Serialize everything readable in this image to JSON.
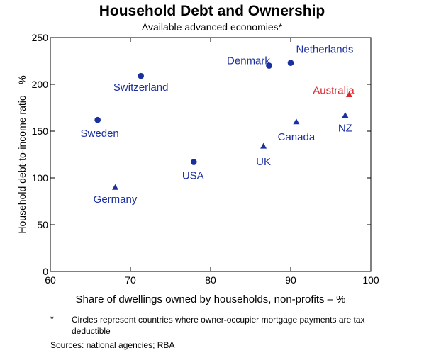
{
  "chart_data": {
    "type": "scatter",
    "title": "Household Debt and Ownership",
    "subtitle": "Available advanced economies*",
    "xlabel": "Share of dwellings owned by households, non-profits – %",
    "ylabel": "Household debt-to-income ratio – %",
    "xlim": [
      60,
      100
    ],
    "ylim": [
      0,
      250
    ],
    "x_ticks": [
      "60",
      "70",
      "80",
      "90",
      "100"
    ],
    "y_ticks": [
      "0",
      "50",
      "100",
      "150",
      "200",
      "250"
    ],
    "grid": false,
    "marker_legend": {
      "circle": "Circles represent countries where owner-occupier mortgage payments are tax deductible"
    },
    "colors": {
      "default": "#1a2fa0",
      "highlight": "#d8262b"
    },
    "points": [
      {
        "label": "Netherlands",
        "x": 90.0,
        "y": 223,
        "marker": "circle",
        "color": "#1a2fa0"
      },
      {
        "label": "Denmark",
        "x": 87.3,
        "y": 220,
        "marker": "circle",
        "color": "#1a2fa0"
      },
      {
        "label": "Switzerland",
        "x": 71.3,
        "y": 209,
        "marker": "circle",
        "color": "#1a2fa0"
      },
      {
        "label": "Sweden",
        "x": 65.9,
        "y": 162,
        "marker": "circle",
        "color": "#1a2fa0"
      },
      {
        "label": "USA",
        "x": 77.9,
        "y": 117,
        "marker": "circle",
        "color": "#1a2fa0"
      },
      {
        "label": "Australia",
        "x": 97.3,
        "y": 189,
        "marker": "triangle",
        "color": "#d8262b"
      },
      {
        "label": "NZ",
        "x": 96.8,
        "y": 167,
        "marker": "triangle",
        "color": "#1a2fa0"
      },
      {
        "label": "Canada",
        "x": 90.7,
        "y": 160,
        "marker": "triangle",
        "color": "#1a2fa0"
      },
      {
        "label": "UK",
        "x": 86.6,
        "y": 134,
        "marker": "triangle",
        "color": "#1a2fa0"
      },
      {
        "label": "Germany",
        "x": 68.1,
        "y": 90,
        "marker": "triangle",
        "color": "#1a2fa0"
      }
    ]
  },
  "footnote": {
    "marker": "*",
    "text": "Circles represent countries where owner-occupier mortgage payments are tax deductible"
  },
  "sources": "Sources: national agencies; RBA"
}
